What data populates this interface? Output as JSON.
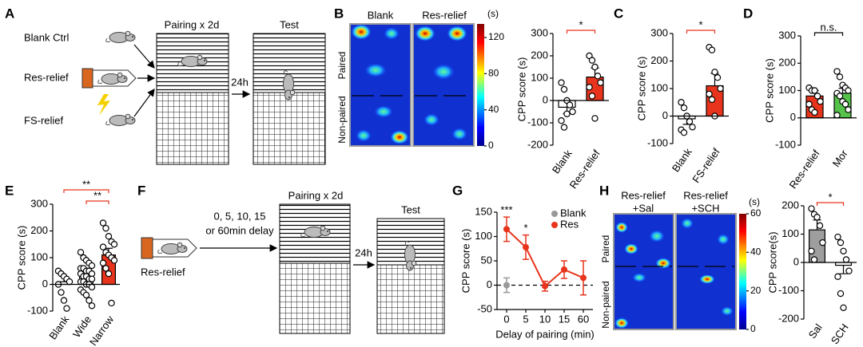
{
  "figure": {
    "letters": [
      "A",
      "B",
      "C",
      "D",
      "E",
      "F",
      "G",
      "H"
    ],
    "diagram_a": {
      "groups": [
        "Blank Ctrl",
        "Res-relief",
        "FS-relief"
      ],
      "pairing": "Pairing x 2d",
      "interval": "24h",
      "test": "Test"
    },
    "diagram_f": {
      "group": "Res-relief",
      "delay": [
        "0, 5, 10, 15",
        "or 60min delay"
      ],
      "pairing": "Pairing x 2d",
      "interval": "24h",
      "test": "Test"
    },
    "heatmap_b": {
      "titles": [
        "Blank",
        "Res-relief"
      ],
      "rows": [
        "Paired",
        "Non-paired"
      ],
      "colorbar": {
        "unit": "(s)",
        "lim": [
          0,
          135
        ],
        "ticks": [
          0,
          40,
          80,
          120
        ]
      }
    },
    "heatmap_h": {
      "titles": [
        [
          "Res-relief",
          "+Sal"
        ],
        [
          "Res-relief",
          "+SCH"
        ]
      ],
      "rows": [
        "Paired",
        "Non-paired"
      ],
      "colorbar": {
        "unit": "(s)",
        "lim": [
          0,
          60
        ],
        "ticks": [
          0,
          20,
          40,
          60
        ]
      }
    }
  },
  "chart_data": [
    {
      "type": "bar",
      "ylabel": "CPP score (s)",
      "categories": [
        "Blank",
        "Res-relief"
      ],
      "values": [
        -30,
        105
      ],
      "errors": [
        28,
        40
      ],
      "colors": [
        "#ffffff",
        "#e8341c"
      ],
      "points": [
        [
          80,
          50,
          0,
          -20,
          -50,
          -90,
          -120,
          -60
        ],
        [
          200,
          180,
          150,
          110,
          80,
          60,
          20,
          -80
        ]
      ],
      "ylim": [
        -200,
        300
      ],
      "yticks": [
        -200,
        -100,
        0,
        100,
        200,
        300
      ],
      "significance": [
        {
          "label": "*",
          "pair": [
            "Blank",
            "Res-relief"
          ],
          "color": "#e8341c"
        }
      ]
    },
    {
      "type": "bar",
      "ylabel": "CPP score (s)",
      "categories": [
        "Blank",
        "FS-relief"
      ],
      "values": [
        -10,
        110
      ],
      "errors": [
        20,
        45
      ],
      "colors": [
        "#ffffff",
        "#e8341c"
      ],
      "points": [
        [
          50,
          30,
          0,
          -20,
          -40,
          -50,
          -60
        ],
        [
          250,
          240,
          160,
          140,
          100,
          80,
          60,
          0
        ]
      ],
      "ylim": [
        -100,
        300
      ],
      "yticks": [
        -100,
        0,
        100,
        200,
        300
      ],
      "significance": [
        {
          "label": "*",
          "pair": [
            "Blank",
            "FS-relief"
          ],
          "color": "#e8341c"
        }
      ]
    },
    {
      "type": "bar",
      "ylabel": "CPP score (s)",
      "categories": [
        "Res-relief",
        "Mor"
      ],
      "values": [
        80,
        90
      ],
      "errors": [
        20,
        18
      ],
      "colors": [
        "#e8341c",
        "#55c24a"
      ],
      "points": [
        [
          110,
          100,
          100,
          80,
          60,
          50,
          30,
          20
        ],
        [
          170,
          150,
          120,
          110,
          100,
          90,
          80,
          60,
          50,
          30,
          10
        ]
      ],
      "ylim": [
        -100,
        300
      ],
      "yticks": [
        -100,
        0,
        100,
        200,
        300
      ],
      "significance": [
        {
          "label": "n.s.",
          "pair": [
            "Res-relief",
            "Mor"
          ],
          "color": "#000000"
        }
      ]
    },
    {
      "type": "bar",
      "ylabel": "CPP score (s)",
      "categories": [
        "Blank",
        "Wide",
        "Narrow"
      ],
      "values": [
        10,
        30,
        110
      ],
      "errors": [
        20,
        12,
        25
      ],
      "colors": [
        "#ffffff",
        "#ffffff",
        "#e8341c"
      ],
      "points": [
        [
          50,
          40,
          30,
          20,
          10,
          0,
          -30,
          -60,
          -90
        ],
        [
          120,
          100,
          90,
          80,
          70,
          60,
          60,
          50,
          50,
          40,
          40,
          30,
          30,
          20,
          20,
          10,
          10,
          0,
          0,
          -10,
          -20,
          -30,
          -40,
          -60,
          -80
        ],
        [
          230,
          210,
          180,
          160,
          150,
          140,
          120,
          110,
          100,
          90,
          80,
          60,
          40,
          -70
        ]
      ],
      "ylim": [
        -100,
        300
      ],
      "yticks": [
        -100,
        0,
        100,
        200,
        300
      ],
      "significance": [
        {
          "label": "**",
          "pair": [
            "Wide",
            "Narrow"
          ],
          "color": "#e8341c"
        },
        {
          "label": "**",
          "pair": [
            "Blank",
            "Narrow"
          ],
          "color": "#e8341c"
        }
      ]
    },
    {
      "type": "line",
      "xlabel": "Delay of pairing (min)",
      "ylabel": "CPP score (s)",
      "categories": [
        "0",
        "5",
        "10",
        "15",
        "60"
      ],
      "series": [
        {
          "name": "Blank",
          "color": "#999999",
          "values": [
            0,
            null,
            null,
            null,
            null
          ],
          "errors": [
            15,
            null,
            null,
            null,
            null
          ]
        },
        {
          "name": "Res",
          "color": "#e8341c",
          "values": [
            115,
            78,
            -2,
            32,
            15
          ],
          "errors": [
            25,
            25,
            10,
            18,
            35
          ]
        }
      ],
      "ylim": [
        -50,
        150
      ],
      "yticks": [
        -50,
        0,
        50,
        100,
        150
      ],
      "hline": 0,
      "legend": "upper right",
      "annotations": [
        {
          "label": "***",
          "category": "0",
          "color": "#e8341c"
        },
        {
          "label": "*",
          "category": "5",
          "color": "#e8341c"
        }
      ]
    },
    {
      "type": "bar",
      "ylabel": "CPP score(s)",
      "categories": [
        "Sal",
        "SCH"
      ],
      "values": [
        115,
        -10
      ],
      "errors": [
        35,
        30
      ],
      "colors": [
        "#9e9e9e",
        "#ffffff"
      ],
      "points": [
        [
          190,
          170,
          160,
          130,
          70,
          40,
          10
        ],
        [
          90,
          70,
          40,
          10,
          -30,
          -50,
          -110,
          -160
        ]
      ],
      "ylim": [
        -200,
        200
      ],
      "yticks": [
        -200,
        -100,
        0,
        100,
        200
      ],
      "significance": [
        {
          "label": "*",
          "pair": [
            "Sal",
            "SCH"
          ],
          "color": "#e8341c"
        }
      ]
    }
  ]
}
